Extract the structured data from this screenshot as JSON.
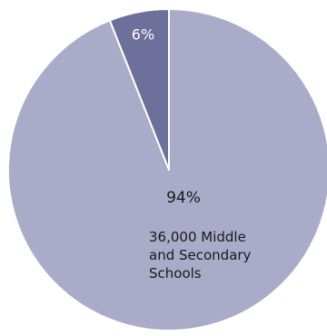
{
  "chart_data": {
    "type": "pie",
    "slices": [
      {
        "value": 94,
        "label": "94%",
        "description_lines": [
          "36,000 Middle",
          "and Secondary",
          "Schools"
        ],
        "color": "#a9abc8"
      },
      {
        "value": 6,
        "label": "6%",
        "description_lines": [],
        "color": "#6e6f9a"
      }
    ],
    "start": "top (12 o'clock), clockwise",
    "slice_border_color": "#ffffff",
    "label_color_light": "#ffffff",
    "label_color_dark": "#1a1a1a"
  }
}
